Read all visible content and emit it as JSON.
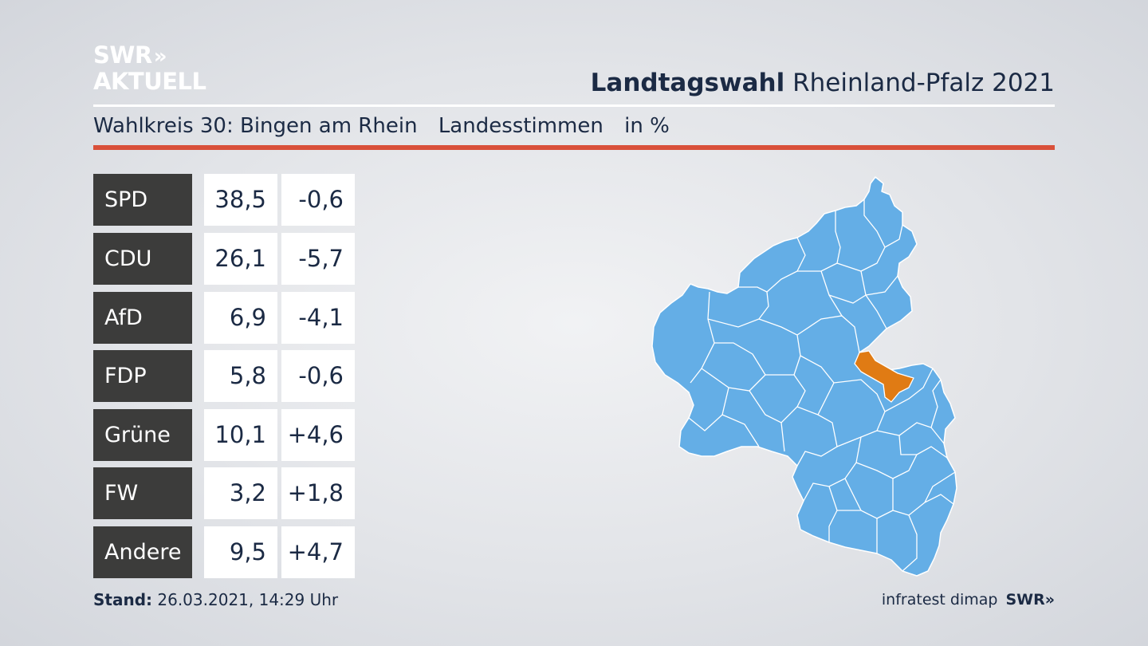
{
  "brand": {
    "line1": "SWR",
    "line2": "AKTUELL",
    "arrows": "»"
  },
  "header": {
    "title_bold": "Landtagswahl",
    "title_rest": "Rheinland-Pfalz 2021"
  },
  "subtitle": {
    "district": "Wahlkreis 30: Bingen am Rhein",
    "vote_type": "Landesstimmen",
    "unit": "in %"
  },
  "results": [
    {
      "party": "SPD",
      "value": "38,5",
      "change": "-0,6"
    },
    {
      "party": "CDU",
      "value": "26,1",
      "change": "-5,7"
    },
    {
      "party": "AfD",
      "value": "6,9",
      "change": "-4,1"
    },
    {
      "party": "FDP",
      "value": "5,8",
      "change": "-0,6"
    },
    {
      "party": "Grüne",
      "value": "10,1",
      "change": "+4,6"
    },
    {
      "party": "FW",
      "value": "3,2",
      "change": "+1,8"
    },
    {
      "party": "Andere",
      "value": "9,5",
      "change": "+4,7"
    }
  ],
  "footer": {
    "stand_label": "Stand:",
    "stand_value": "26.03.2021, 14:29 Uhr"
  },
  "source": {
    "pollster": "infratest dimap",
    "broadcaster": "SWR»"
  },
  "colors": {
    "map_fill": "#64aee6",
    "highlight": "#e07b14",
    "accent_rule": "#d9503a",
    "party_box": "#3c3c3b"
  },
  "map": {
    "icon": "rheinland-pfalz-map",
    "highlighted_district": "Bingen am Rhein"
  }
}
